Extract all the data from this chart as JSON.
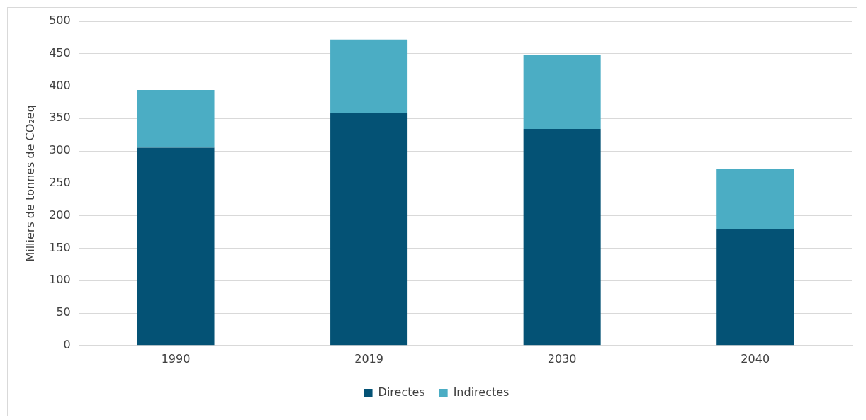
{
  "chart_data": {
    "type": "bar",
    "stacked": true,
    "ylabel": "Milliers de tonnes de CO₂eq",
    "categories": [
      "1990",
      "2019",
      "2030",
      "2040"
    ],
    "series": [
      {
        "name": "Directes",
        "color": "#045275",
        "values": [
          305,
          359,
          334,
          179
        ]
      },
      {
        "name": "Indirectes",
        "color": "#4badc4",
        "values": [
          89,
          113,
          114,
          93
        ]
      }
    ],
    "ylim": [
      0,
      500
    ],
    "yticks": [
      0,
      50,
      100,
      150,
      200,
      250,
      300,
      350,
      400,
      450,
      500
    ],
    "grid": "y",
    "legend": "bottom"
  }
}
